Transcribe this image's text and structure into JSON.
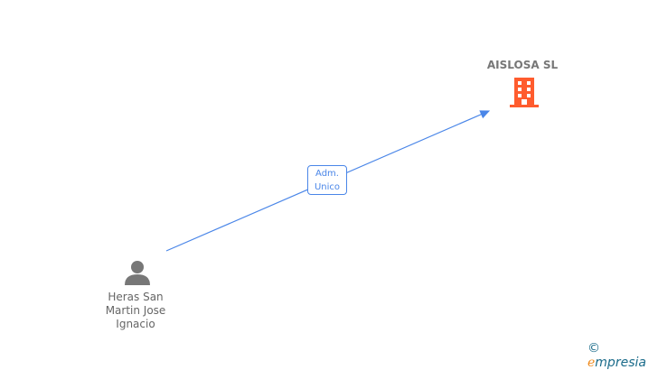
{
  "company": {
    "name": "AISLOSA SL",
    "icon": "building-icon",
    "color": "#ff5c2e"
  },
  "person": {
    "name_lines": [
      "Heras San",
      "Martin Jose",
      "Ignacio"
    ],
    "icon": "person-icon"
  },
  "edge": {
    "label_lines": [
      "Adm.",
      "Unico"
    ],
    "color": "#4a86e8"
  },
  "watermark": {
    "symbol": "©",
    "first": "e",
    "rest": "mpresia"
  }
}
